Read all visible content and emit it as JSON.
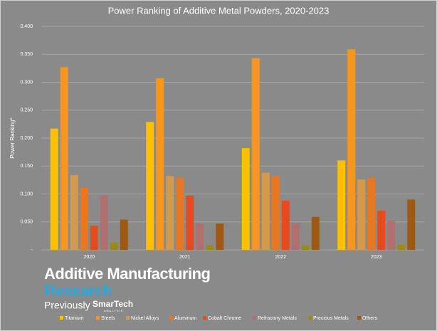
{
  "chart_data": {
    "type": "bar",
    "title": "Power Ranking of Additive Metal Powders, 2020-2023",
    "ylabel": "Power Ranking*",
    "categories": [
      "2020",
      "2021",
      "2022",
      "2023"
    ],
    "series": [
      {
        "name": "Titanium",
        "color": "#ffc000",
        "values": [
          0.217,
          0.229,
          0.182,
          0.16
        ]
      },
      {
        "name": "Steels",
        "color": "#f7961e",
        "values": [
          0.327,
          0.307,
          0.343,
          0.359
        ]
      },
      {
        "name": "Nickel Alloys",
        "color": "#d39a4c",
        "values": [
          0.134,
          0.132,
          0.138,
          0.126
        ]
      },
      {
        "name": "Aluminum",
        "color": "#e8771f",
        "values": [
          0.111,
          0.129,
          0.132,
          0.129
        ]
      },
      {
        "name": "Cobalt Chrome",
        "color": "#e54b1f",
        "values": [
          0.043,
          0.097,
          0.088,
          0.07
        ]
      },
      {
        "name": "Refractory Metals",
        "color": "#b07070",
        "values": [
          0.098,
          0.047,
          0.048,
          0.052
        ]
      },
      {
        "name": "Precious Metals",
        "color": "#9c8a14",
        "values": [
          0.013,
          0.008,
          0.008,
          0.009
        ]
      },
      {
        "name": "Others",
        "color": "#9e5a12",
        "values": [
          0.054,
          0.047,
          0.059,
          0.09
        ]
      }
    ],
    "ylim": [
      0,
      0.4
    ],
    "yticks": [
      {
        "value": 0,
        "label": "-"
      },
      {
        "value": 0.05,
        "label": "0.050"
      },
      {
        "value": 0.1,
        "label": "0.100"
      },
      {
        "value": 0.15,
        "label": "0.150"
      },
      {
        "value": 0.2,
        "label": "0.200"
      },
      {
        "value": 0.25,
        "label": "0.250"
      },
      {
        "value": 0.3,
        "label": "0.300"
      },
      {
        "value": 0.35,
        "label": "0.350"
      },
      {
        "value": 0.4,
        "label": "0.400"
      }
    ],
    "grid": true
  },
  "logo": {
    "line1": "Additive Manufacturing",
    "line2": "Research",
    "previously": "Previously",
    "brand": "SmarTech",
    "brand_sub": "ANALYSIS"
  }
}
